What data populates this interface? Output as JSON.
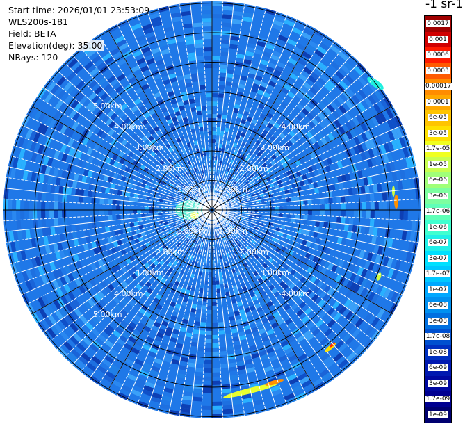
{
  "info": {
    "start_time": "Start time: 2026/01/01 23:53:09",
    "site": "WLS200s-181",
    "field": "Field: BETA",
    "elevation": "Elevation(deg): 35.00",
    "nrays": "NRays: 120"
  },
  "units_title": "-1 sr-1",
  "range_labels": [
    "1.00km",
    "2.00km",
    "3.00km",
    "4.00km",
    "5.00km"
  ],
  "colorbar": {
    "labels": [
      "0.0017",
      "0.001",
      "0.0006",
      "0.0003",
      "0.00017",
      "0.0001",
      "6e-05",
      "3e-05",
      "1.7e-05",
      "1e-05",
      "6e-06",
      "3e-06",
      "1.7e-06",
      "1e-06",
      "6e-07",
      "3e-07",
      "1.7e-07",
      "1e-07",
      "6e-08",
      "3e-08",
      "1.7e-08",
      "1e-08",
      "6e-09",
      "3e-09",
      "1.7e-09",
      "1e-09"
    ],
    "colors": [
      "#a00000",
      "#d00000",
      "#ff1a00",
      "#ff5a00",
      "#ff8c00",
      "#ffa800",
      "#ffc400",
      "#ffe000",
      "#f0ff20",
      "#c8ff50",
      "#a0ff78",
      "#7cffa0",
      "#60ffb8",
      "#40ffd0",
      "#20f0e8",
      "#00e0ff",
      "#00c8ff",
      "#00a8ff",
      "#0090f0",
      "#0070e0",
      "#0050d0",
      "#0030c0",
      "#0018b0",
      "#0008a0",
      "#000090",
      "#000070"
    ],
    "light_text_from_index": 19
  },
  "colors": {
    "background_field": "#1f78e8",
    "ring_line": "#000000",
    "ray_line": "#ffffff"
  }
}
